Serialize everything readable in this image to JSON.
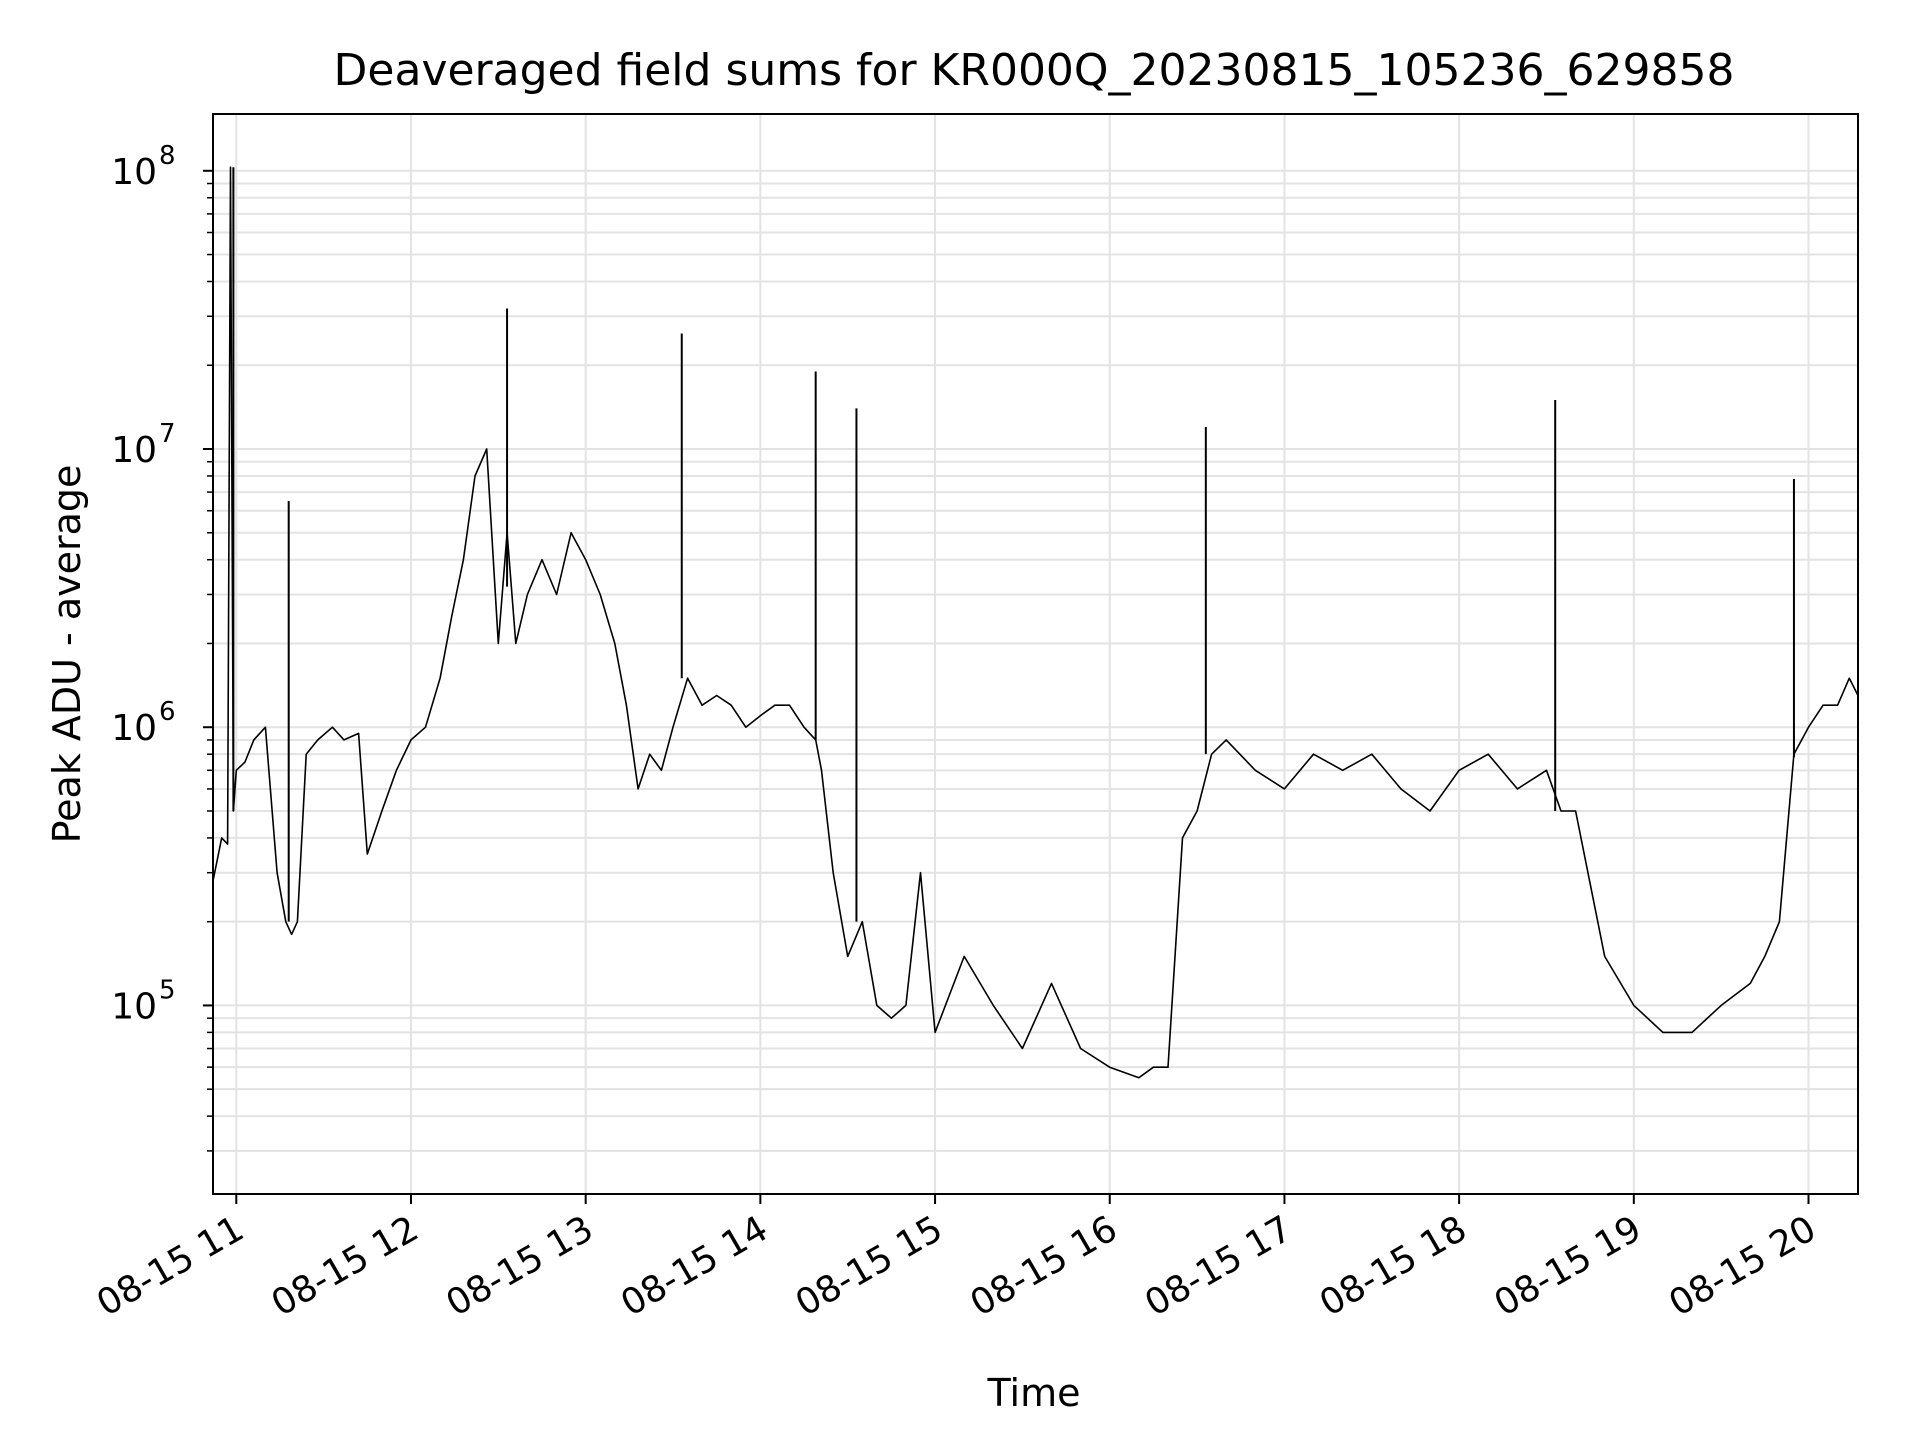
{
  "chart_data": {
    "type": "line",
    "title": "Deaveraged field sums for KR000Q_20230815_105236_629858",
    "xlabel": "Time",
    "ylabel": "Peak ADU - average",
    "yscale": "log",
    "ylim": [
      21000,
      160000000
    ],
    "xlim": [
      "2023-08-15 10:52",
      "2023-08-15 20:17"
    ],
    "x_ticks": [
      "08-15 11",
      "08-15 12",
      "08-15 13",
      "08-15 14",
      "08-15 15",
      "08-15 16",
      "08-15 17",
      "08-15 18",
      "08-15 19",
      "08-15 20"
    ],
    "y_ticks": [
      {
        "value": 100000,
        "base": "10",
        "exp": "5"
      },
      {
        "value": 1000000,
        "base": "10",
        "exp": "6"
      },
      {
        "value": 10000000,
        "base": "10",
        "exp": "7"
      },
      {
        "value": 100000000,
        "base": "10",
        "exp": "8"
      }
    ],
    "grid": true,
    "legend": "none",
    "line_color": "#000000",
    "series": [
      {
        "x": [
          "2023-08-15 10:52",
          "2023-08-15 10:55",
          "2023-08-15 10:57",
          "2023-08-15 10:58",
          "2023-08-15 10:59",
          "2023-08-15 11:00",
          "2023-08-15 11:03",
          "2023-08-15 11:06",
          "2023-08-15 11:10",
          "2023-08-15 11:14",
          "2023-08-15 11:17",
          "2023-08-15 11:19",
          "2023-08-15 11:21",
          "2023-08-15 11:24",
          "2023-08-15 11:28",
          "2023-08-15 11:33",
          "2023-08-15 11:37",
          "2023-08-15 11:42",
          "2023-08-15 11:45",
          "2023-08-15 11:50",
          "2023-08-15 11:55",
          "2023-08-15 12:00",
          "2023-08-15 12:05",
          "2023-08-15 12:10",
          "2023-08-15 12:14",
          "2023-08-15 12:18",
          "2023-08-15 12:22",
          "2023-08-15 12:26",
          "2023-08-15 12:30",
          "2023-08-15 12:33",
          "2023-08-15 12:36",
          "2023-08-15 12:40",
          "2023-08-15 12:45",
          "2023-08-15 12:50",
          "2023-08-15 12:55",
          "2023-08-15 13:00",
          "2023-08-15 13:05",
          "2023-08-15 13:10",
          "2023-08-15 13:14",
          "2023-08-15 13:18",
          "2023-08-15 13:22",
          "2023-08-15 13:26",
          "2023-08-15 13:30",
          "2023-08-15 13:35",
          "2023-08-15 13:40",
          "2023-08-15 13:45",
          "2023-08-15 13:50",
          "2023-08-15 13:55",
          "2023-08-15 14:00",
          "2023-08-15 14:05",
          "2023-08-15 14:10",
          "2023-08-15 14:15",
          "2023-08-15 14:19",
          "2023-08-15 14:21",
          "2023-08-15 14:25",
          "2023-08-15 14:30",
          "2023-08-15 14:35",
          "2023-08-15 14:40",
          "2023-08-15 14:45",
          "2023-08-15 14:50",
          "2023-08-15 14:55",
          "2023-08-15 15:00",
          "2023-08-15 15:10",
          "2023-08-15 15:20",
          "2023-08-15 15:30",
          "2023-08-15 15:40",
          "2023-08-15 15:50",
          "2023-08-15 16:00",
          "2023-08-15 16:10",
          "2023-08-15 16:15",
          "2023-08-15 16:20",
          "2023-08-15 16:25",
          "2023-08-15 16:30",
          "2023-08-15 16:35",
          "2023-08-15 16:40",
          "2023-08-15 16:50",
          "2023-08-15 17:00",
          "2023-08-15 17:10",
          "2023-08-15 17:20",
          "2023-08-15 17:30",
          "2023-08-15 17:40",
          "2023-08-15 17:50",
          "2023-08-15 18:00",
          "2023-08-15 18:10",
          "2023-08-15 18:20",
          "2023-08-15 18:30",
          "2023-08-15 18:35",
          "2023-08-15 18:40",
          "2023-08-15 18:50",
          "2023-08-15 19:00",
          "2023-08-15 19:10",
          "2023-08-15 19:20",
          "2023-08-15 19:30",
          "2023-08-15 19:40",
          "2023-08-15 19:45",
          "2023-08-15 19:50",
          "2023-08-15 19:55",
          "2023-08-15 20:00",
          "2023-08-15 20:05",
          "2023-08-15 20:10",
          "2023-08-15 20:14",
          "2023-08-15 20:17"
        ],
        "y": [
          280000,
          400000,
          380000,
          103000000,
          500000,
          700000,
          750000,
          900000,
          1000000,
          300000,
          200000,
          180000,
          200000,
          800000,
          900000,
          1000000,
          900000,
          950000,
          350000,
          500000,
          700000,
          900000,
          1000000,
          1500000,
          2500000,
          4000000,
          8000000,
          10000000,
          2000000,
          5000000,
          2000000,
          3000000,
          4000000,
          3000000,
          5000000,
          4000000,
          3000000,
          2000000,
          1200000,
          600000,
          800000,
          700000,
          1000000,
          1500000,
          1200000,
          1300000,
          1200000,
          1000000,
          1100000,
          1200000,
          1200000,
          1000000,
          900000,
          700000,
          300000,
          150000,
          200000,
          100000,
          90000,
          100000,
          300000,
          80000,
          150000,
          100000,
          70000,
          120000,
          70000,
          60000,
          55000,
          60000,
          60000,
          400000,
          500000,
          800000,
          900000,
          700000,
          600000,
          800000,
          700000,
          800000,
          600000,
          500000,
          700000,
          800000,
          600000,
          700000,
          500000,
          500000,
          150000,
          100000,
          80000,
          80000,
          100000,
          120000,
          150000,
          200000,
          800000,
          1000000,
          1200000,
          1200000,
          1500000,
          1300000
        ],
        "spikes": [
          {
            "x": "2023-08-15 10:59",
            "y": 103000000
          },
          {
            "x": "2023-08-15 11:18",
            "y": 6500000
          },
          {
            "x": "2023-08-15 12:33",
            "y": 32000000
          },
          {
            "x": "2023-08-15 13:33",
            "y": 26000000
          },
          {
            "x": "2023-08-15 14:19",
            "y": 19000000
          },
          {
            "x": "2023-08-15 14:33",
            "y": 14000000
          },
          {
            "x": "2023-08-15 16:33",
            "y": 12000000
          },
          {
            "x": "2023-08-15 18:33",
            "y": 15000000
          },
          {
            "x": "2023-08-15 19:55",
            "y": 7800000
          }
        ]
      }
    ]
  }
}
